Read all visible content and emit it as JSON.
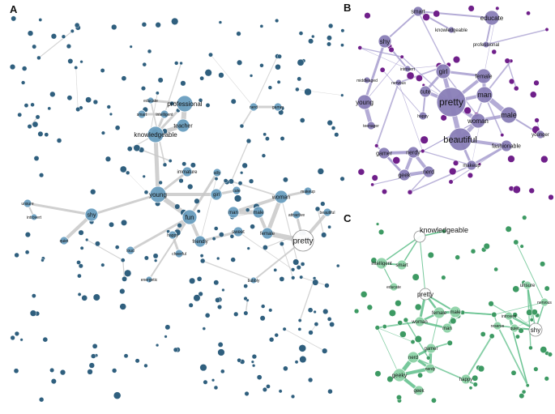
{
  "panels": {
    "a": {
      "letter": "A",
      "labels": {
        "professional": "professional",
        "knowledgeable": "knowledgeable",
        "teacher": "teacher",
        "young": "young",
        "fun": "fun",
        "shy": "shy",
        "pretty": "pretty",
        "female": "female",
        "woman": "woman",
        "man": "man",
        "male": "male",
        "girl": "girl",
        "friendly": "friendly",
        "sweet": "sweet",
        "happy": "happy",
        "immature": "immature",
        "smart": "smart",
        "intelligent": "intelligent",
        "nerd": "nerd",
        "gamer": "gamer",
        "cheerful": "cheerful",
        "makeup": "makeup",
        "beautiful": "beautiful",
        "attractive": "attractive",
        "cute": "cute",
        "silly": "silly",
        "unsure": "unsure",
        "quiet": "quiet",
        "loud": "loud",
        "educate": "educate",
        "introvert": "introvert",
        "energetic": "energetic",
        "bubbly": "bubbly"
      }
    },
    "b": {
      "letter": "B",
      "labels": {
        "smart": "smart",
        "educate": "educate",
        "knowledgeable": "knowledgeable",
        "professional": "professional",
        "shy": "shy",
        "young": "young",
        "teenager": "teenager",
        "girl": "girl",
        "cute": "cute",
        "pretty": "pretty",
        "female": "female",
        "man": "man",
        "male": "male",
        "woman": "woman",
        "beautiful": "beautiful",
        "fashionable": "fashionable",
        "makeup": "makeup",
        "gamer": "gamer",
        "nerdy": "nerdy",
        "geek": "geek",
        "nerd": "nerd",
        "happy": "happy",
        "younger": "younger",
        "middleaged": "middleaged",
        "nervous": "nervous",
        "introvert": "introvert"
      }
    },
    "c": {
      "letter": "C",
      "labels": {
        "knowledgeable": "knowledgeable",
        "intelligent": "intelligent",
        "smart": "smart",
        "educate": "educate",
        "pretty": "pretty",
        "female": "female",
        "male": "male",
        "woman": "woman",
        "man": "man",
        "gamer": "gamer",
        "nerd": "nerd",
        "nerdy": "nerdy",
        "geeky": "geeky",
        "geek": "geek",
        "happy": "happy",
        "unsure": "unsure",
        "shy": "shy",
        "nervous": "nervous",
        "introvert": "introvert",
        "reserve": "reserve",
        "quiet": "quiet"
      }
    }
  },
  "colors": {
    "a_node": "#6a9fc0",
    "a_node_dark": "#2f5f7e",
    "a_edge": "#c8c8c8",
    "b_node": "#8a7fb8",
    "b_node_dark": "#6f1f8a",
    "b_edge": "#a79ed0",
    "c_node": "#8fd3a8",
    "c_node_dark": "#3d9a63",
    "c_edge": "#5fbf8a"
  }
}
